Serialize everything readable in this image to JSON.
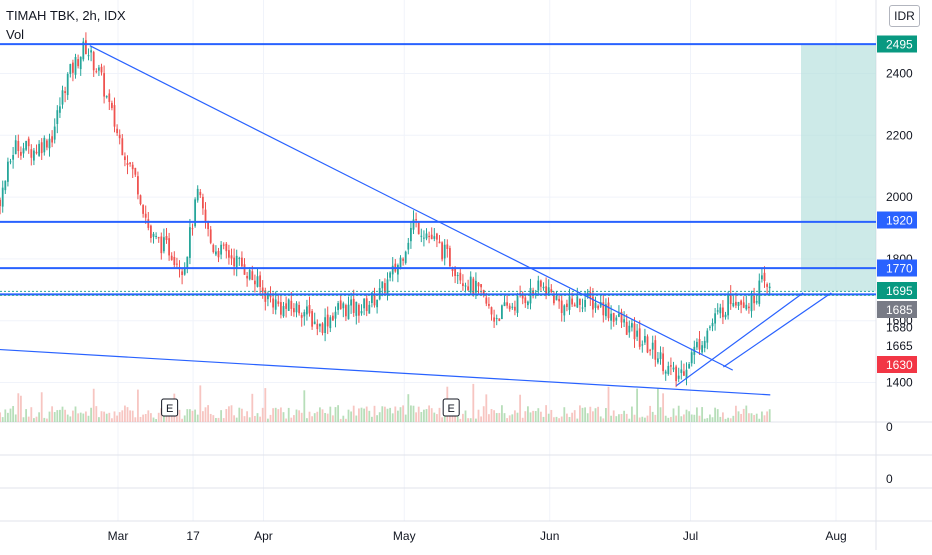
{
  "header": {
    "title": "TIMAH TBK, 2h, IDX",
    "volume_label": "Vol",
    "currency": "IDR"
  },
  "colors": {
    "up": "#26a69a",
    "down": "#ef5350",
    "line": "#2962ff",
    "target_zone": "#b2dfdb",
    "stop_zone": "#ffcdd2",
    "neutral_label": "#787b86"
  },
  "chart_data": {
    "type": "candlestick",
    "price_axis": {
      "ticks": [
        1400,
        1600,
        1800,
        2000,
        2200,
        2400
      ],
      "range": [
        1330,
        2600
      ]
    },
    "sub_pane_ticks": [
      "0",
      "0"
    ],
    "time_axis": [
      "Mar",
      "17",
      "Apr",
      "May",
      "Jun",
      "Jul",
      "Aug"
    ],
    "price_labels": [
      {
        "value": "2495",
        "color": "#089981"
      },
      {
        "value": "1920",
        "color": "#2962ff"
      },
      {
        "value": "1770",
        "color": "#2962ff"
      },
      {
        "value": "1695",
        "color": "#089981"
      },
      {
        "value": "1685",
        "color": "#787b86"
      },
      {
        "value": "1680",
        "color": null
      },
      {
        "value": "1665",
        "color": null
      },
      {
        "value": "1630",
        "color": "#f23645"
      }
    ],
    "horizontal_levels": [
      2495,
      1920,
      1770,
      1685
    ],
    "dotted_levels": [
      1695,
      1682
    ],
    "target_zone": {
      "from": 1695,
      "to": 2495
    },
    "stop_zone": {
      "from": 1630,
      "to": 1695
    },
    "earnings_markers": [
      "E",
      "E"
    ],
    "trendlines": [
      {
        "from": {
          "date": "Feb 24",
          "price": 2490
        },
        "to": {
          "date": "Jul 10",
          "price": 1440
        }
      },
      {
        "from": {
          "date": "Feb 01",
          "price": 1510
        },
        "to": {
          "date": "Jul 18",
          "price": 1360
        }
      },
      {
        "from": {
          "date": "Jun 28",
          "price": 1390
        },
        "to": {
          "date": "Jul 25",
          "price": 1690
        }
      },
      {
        "from": {
          "date": "Jul 08",
          "price": 1450
        },
        "to": {
          "date": "Jul 31",
          "price": 1690
        }
      }
    ],
    "price_path": [
      [
        "Feb 01",
        1880
      ],
      [
        "Feb 05",
        2000
      ],
      [
        "Feb 08",
        2170
      ],
      [
        "Feb 12",
        2150
      ],
      [
        "Feb 16",
        2200
      ],
      [
        "Feb 19",
        2380
      ],
      [
        "Feb 23",
        2490
      ],
      [
        "Feb 26",
        2400
      ],
      [
        "Mar 01",
        2200
      ],
      [
        "Mar 05",
        2050
      ],
      [
        "Mar 08",
        1870
      ],
      [
        "Mar 12",
        1830
      ],
      [
        "Mar 15",
        1770
      ],
      [
        "Mar 18",
        2010
      ],
      [
        "Mar 21",
        1840
      ],
      [
        "Mar 25",
        1810
      ],
      [
        "Mar 28",
        1770
      ],
      [
        "Apr 01",
        1690
      ],
      [
        "Apr 05",
        1640
      ],
      [
        "Apr 09",
        1640
      ],
      [
        "Apr 13",
        1580
      ],
      [
        "Apr 17",
        1640
      ],
      [
        "Apr 22",
        1640
      ],
      [
        "Apr 26",
        1690
      ],
      [
        "Apr 30",
        1790
      ],
      [
        "May 03",
        1920
      ],
      [
        "May 06",
        1880
      ],
      [
        "May 10",
        1810
      ],
      [
        "May 14",
        1730
      ],
      [
        "May 17",
        1690
      ],
      [
        "May 20",
        1610
      ],
      [
        "May 24",
        1650
      ],
      [
        "May 28",
        1690
      ],
      [
        "May 31",
        1710
      ],
      [
        "Jun 04",
        1640
      ],
      [
        "Jun 08",
        1670
      ],
      [
        "Jun 12",
        1650
      ],
      [
        "Jun 16",
        1600
      ],
      [
        "Jun 20",
        1540
      ],
      [
        "Jun 24",
        1490
      ],
      [
        "Jun 28",
        1410
      ],
      [
        "Jul 02",
        1510
      ],
      [
        "Jul 06",
        1600
      ],
      [
        "Jul 10",
        1680
      ],
      [
        "Jul 14",
        1660
      ],
      [
        "Jul 16",
        1720
      ],
      [
        "Jul 18",
        1695
      ]
    ]
  }
}
